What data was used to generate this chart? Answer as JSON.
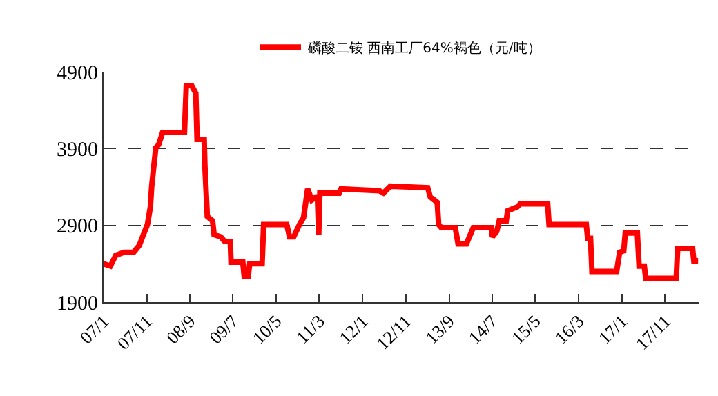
{
  "chart_data": {
    "type": "line",
    "legend": "top",
    "grid": "y",
    "marker": "none",
    "line_style": "solid",
    "ylim": [
      1900,
      4900
    ],
    "yticks": [
      1900,
      2900,
      3900,
      4900
    ],
    "xlim": [
      "2007-01-01",
      "2018-06-25"
    ],
    "xticks": [
      {
        "value": "2007-01",
        "label": "07/1"
      },
      {
        "value": "2007-11",
        "label": "07/11"
      },
      {
        "value": "2008-09",
        "label": "08/9"
      },
      {
        "value": "2009-07",
        "label": "09/7"
      },
      {
        "value": "2010-05",
        "label": "10/5"
      },
      {
        "value": "2011-03",
        "label": "11/3"
      },
      {
        "value": "2012-01",
        "label": "12/1"
      },
      {
        "value": "2012-11",
        "label": "12/11"
      },
      {
        "value": "2013-09",
        "label": "13/9"
      },
      {
        "value": "2014-07",
        "label": "14/7"
      },
      {
        "value": "2015-05",
        "label": "15/5"
      },
      {
        "value": "2016-03",
        "label": "16/3"
      },
      {
        "value": "2017-01",
        "label": "17/1"
      },
      {
        "value": "2017-11",
        "label": "17/11"
      }
    ],
    "series": [
      {
        "name": "磷酸二铵 西南工厂64%褐色（元/吨）",
        "color": "#ff0000",
        "x": [
          "2007-01-01",
          "2007-02-18",
          "2007-03-28",
          "2007-05-24",
          "2007-08-01",
          "2007-09-10",
          "2007-10-09",
          "2007-11-06",
          "2007-11-27",
          "2007-12-06",
          "2008-01-04",
          "2008-01-24",
          "2008-02-21",
          "2008-07-24",
          "2008-08-06",
          "2008-09-13",
          "2008-10-12",
          "2008-10-21",
          "2008-12-10",
          "2008-12-15",
          "2009-01-01",
          "2009-02-07",
          "2009-02-18",
          "2009-04-06",
          "2009-05-04",
          "2009-06-12",
          "2009-06-17",
          "2009-09-08",
          "2009-09-18",
          "2009-10-16",
          "2009-10-27",
          "2010-01-22",
          "2010-02-02",
          "2010-07-15",
          "2010-08-03",
          "2010-09-02",
          "2010-10-12",
          "2010-11-10",
          "2010-12-09",
          "2011-01-07",
          "2011-02-16",
          "2011-02-25",
          "2011-03-05",
          "2011-07-19",
          "2011-08-01",
          "2012-04-27",
          "2012-05-26",
          "2012-07-14",
          "2013-04-03",
          "2013-04-21",
          "2013-06-09",
          "2013-06-19",
          "2013-07-08",
          "2013-10-14",
          "2013-11-03",
          "2014-01-01",
          "2014-02-18",
          "2014-06-24",
          "2014-07-03",
          "2014-08-02",
          "2014-08-20",
          "2014-10-08",
          "2014-10-18",
          "2014-12-25",
          "2015-01-15",
          "2015-07-27",
          "2015-08-06",
          "2016-04-24",
          "2016-05-04",
          "2016-05-24",
          "2016-06-03",
          "2016-11-24",
          "2016-12-15",
          "2017-01-13",
          "2017-01-24",
          "2017-04-19",
          "2017-05-01",
          "2017-06-07",
          "2017-06-17",
          "2018-01-18",
          "2018-01-28",
          "2018-05-13",
          "2018-05-22",
          "2018-06-21"
        ],
        "values": [
          2400,
          2370,
          2510,
          2550,
          2550,
          2640,
          2780,
          2910,
          3140,
          3410,
          3910,
          3950,
          4110,
          4110,
          4720,
          4720,
          4620,
          4020,
          4020,
          3680,
          3015,
          2960,
          2780,
          2750,
          2690,
          2690,
          2420,
          2420,
          2240,
          2240,
          2400,
          2400,
          2910,
          2910,
          2750,
          2750,
          2910,
          3000,
          3375,
          3230,
          3280,
          2780,
          3320,
          3320,
          3375,
          3350,
          3320,
          3410,
          3390,
          3270,
          3200,
          2910,
          2870,
          2870,
          2660,
          2660,
          2870,
          2870,
          2750,
          2820,
          2960,
          2960,
          3090,
          3140,
          3180,
          3180,
          2910,
          2910,
          2730,
          2730,
          2300,
          2300,
          2550,
          2570,
          2800,
          2800,
          2370,
          2370,
          2210,
          2210,
          2600,
          2600,
          2440,
          2440
        ]
      }
    ]
  }
}
